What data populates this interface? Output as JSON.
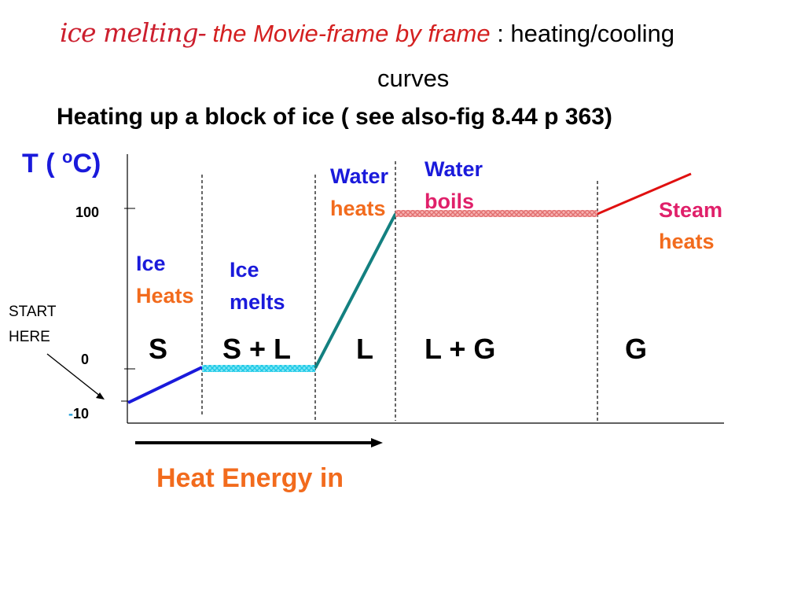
{
  "title": {
    "cursive": "ice melting-",
    "italic": " the Movie-frame by frame",
    "plain": " : heating/cooling",
    "line2": "curves"
  },
  "subtitle": "Heating up a block of ice ( see also-fig 8.44 p 363)",
  "axis": {
    "y_label_pre": "T ( ",
    "y_label_sup": "o",
    "y_label_post": "C)",
    "x_label": "Heat Energy in",
    "ticks": {
      "t100": "100",
      "t0": "0",
      "tm10_dash": "-",
      "tm10_num": "10"
    }
  },
  "start_here": {
    "line1": "START",
    "line2": "HERE"
  },
  "stages": {
    "ice_heats": {
      "a": "Ice",
      "b": "Heats"
    },
    "ice_melts": {
      "a": "Ice",
      "b": "melts"
    },
    "water_heats": {
      "a": "Water",
      "b": "heats"
    },
    "water_boils": {
      "a": "Water",
      "b": "boils"
    },
    "steam_heats": {
      "a": "Steam",
      "b": "heats"
    }
  },
  "phases": {
    "s": "S",
    "sl": "S + L",
    "l": "L",
    "lg": "L + G",
    "g": "G"
  },
  "colors": {
    "blue": "#1a1adb",
    "orange": "#f26b1d",
    "magenta": "#e0206a",
    "teal": "#138080",
    "red": "#e01010",
    "cyan": "#33d6ee",
    "pink": "#f08080",
    "title_red": "#d42020"
  },
  "chart_data": {
    "type": "line",
    "xlabel": "Heat Energy in",
    "ylabel": "T ( oC)",
    "y_ticks": [
      100,
      0,
      -10
    ],
    "segments": [
      {
        "stage": "Ice Heats",
        "phase": "S",
        "t_start": -10,
        "t_end": 0,
        "color": "blue"
      },
      {
        "stage": "Ice melts",
        "phase": "S + L",
        "t_start": 0,
        "t_end": 0,
        "color": "cyan"
      },
      {
        "stage": "Water heats",
        "phase": "L",
        "t_start": 0,
        "t_end": 100,
        "color": "teal"
      },
      {
        "stage": "Water boils",
        "phase": "L + G",
        "t_start": 100,
        "t_end": 100,
        "color": "pink"
      },
      {
        "stage": "Steam heats",
        "phase": "G",
        "t_start": 100,
        "t_end": 110,
        "color": "red"
      }
    ]
  }
}
